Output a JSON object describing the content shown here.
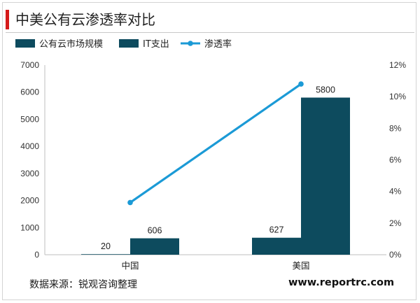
{
  "title": "中美公有云渗透率对比",
  "source": "数据来源：锐观咨询整理",
  "website": "www.reportrc.com",
  "colors": {
    "bar": "#0d4b5e",
    "line": "#1b9ad6",
    "accent": "#d51a1a"
  },
  "chart_data": {
    "type": "bar",
    "categories": [
      "中国",
      "美国"
    ],
    "series": [
      {
        "name": "公有云市场规模",
        "type": "bar",
        "axis": "left",
        "values": [
          20,
          627
        ],
        "labels": [
          "20",
          "627"
        ]
      },
      {
        "name": "IT支出",
        "type": "bar",
        "axis": "left",
        "values": [
          606,
          5800
        ],
        "labels": [
          "606",
          "5800"
        ]
      },
      {
        "name": "渗透率",
        "type": "line",
        "axis": "right",
        "values": [
          3.3,
          10.8
        ]
      }
    ],
    "y_left": {
      "min": 0,
      "max": 7000,
      "ticks": [
        "0",
        "1000",
        "2000",
        "3000",
        "4000",
        "5000",
        "6000",
        "7000"
      ]
    },
    "y_right": {
      "min": 0,
      "max": 12,
      "ticks": [
        "0%",
        "2%",
        "4%",
        "6%",
        "8%",
        "10%",
        "12%"
      ]
    },
    "legend": "top-left",
    "grid": false
  }
}
